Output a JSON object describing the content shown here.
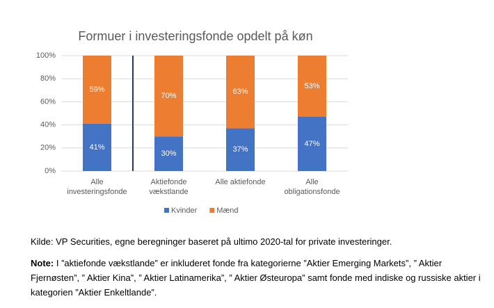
{
  "chart_data": {
    "type": "stacked_bar",
    "title": "Formuer i investeringsfonde opdelt på køn",
    "categories": [
      [
        "Alle",
        "investeringsfonde"
      ],
      [
        "Aktiefonde",
        "vækstlande"
      ],
      [
        "Alle aktiefonde"
      ],
      [
        "Alle",
        "obligationsfonde"
      ]
    ],
    "series": [
      {
        "name": "Kvinder",
        "color": "#4472c4",
        "values": [
          41,
          30,
          37,
          47
        ],
        "value_labels": [
          "41%",
          "30%",
          "37%",
          "47%"
        ]
      },
      {
        "name": "Mænd",
        "color": "#ed7d31",
        "values": [
          59,
          70,
          63,
          53
        ],
        "value_labels": [
          "59%",
          "70%",
          "63%",
          "53%"
        ]
      }
    ],
    "ylim": [
      0,
      100
    ],
    "yticks": [
      {
        "value": 0,
        "label": "0%"
      },
      {
        "value": 20,
        "label": "20%"
      },
      {
        "value": 40,
        "label": "40%"
      },
      {
        "value": 60,
        "label": "60%"
      },
      {
        "value": 80,
        "label": "80%"
      },
      {
        "value": 100,
        "label": "100%"
      }
    ],
    "grid": true,
    "legend": "bottom"
  },
  "source": "Kilde: VP Securities, egne beregninger baseret på ultimo 2020-tal for private investeringer.",
  "note_label": "Note:",
  "note": "I ”aktiefonde vækstlande” er inkluderet fonde fra kategorierne ”Aktier Emerging Markets”, ” Aktier Fjernøsten”, ” Aktier Kina”, ” Aktier Latinamerika”, ” Aktier Østeuropa” samt fonde med indiske og russiske aktier i kategorien ”Aktier Enkeltlande”."
}
